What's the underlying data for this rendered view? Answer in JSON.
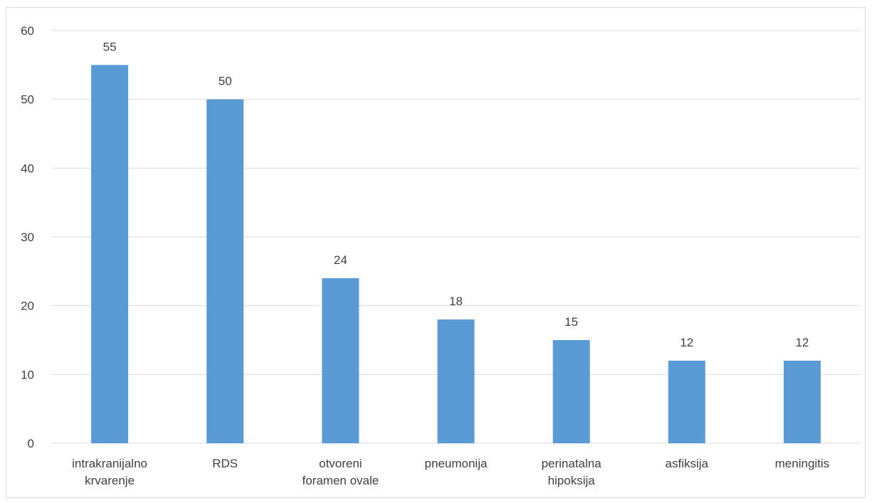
{
  "chart_data": {
    "type": "bar",
    "title": "",
    "xlabel": "",
    "ylabel": "",
    "categories": [
      [
        "intrakranijalno",
        "krvarenje"
      ],
      [
        "RDS"
      ],
      [
        "otvoreni",
        "foramen ovale"
      ],
      [
        "pneumonija"
      ],
      [
        "perinatalna",
        "hipoksija"
      ],
      [
        "asfiksija"
      ],
      [
        "meningitis"
      ]
    ],
    "values": [
      55,
      50,
      24,
      18,
      15,
      12,
      12
    ],
    "ylim": [
      0,
      60
    ],
    "yticks": [
      0,
      10,
      20,
      30,
      40,
      50,
      60
    ],
    "grid": true,
    "legend": "none",
    "data_labels": true,
    "colors": {
      "bar": "#5b9bd5",
      "grid": "#d9d9d9",
      "text": "#404040"
    }
  }
}
